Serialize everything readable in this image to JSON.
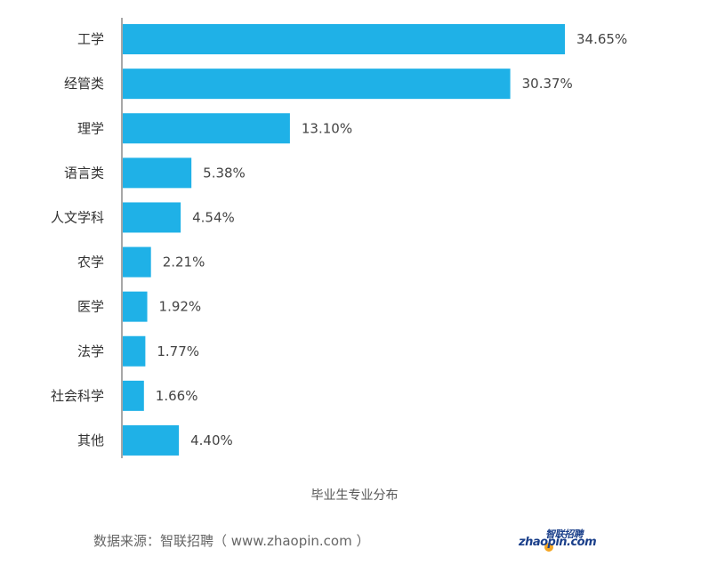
{
  "chart_data": {
    "type": "bar",
    "orientation": "horizontal",
    "categories": [
      "工学",
      "经管类",
      "理学",
      "语言类",
      "人文学科",
      "农学",
      "医学",
      "法学",
      "社会科学",
      "其他"
    ],
    "values": [
      34.65,
      30.37,
      13.1,
      5.38,
      4.54,
      2.21,
      1.92,
      1.77,
      1.66,
      4.4
    ],
    "value_labels": [
      "34.65%",
      "30.37%",
      "13.10%",
      "5.38%",
      "4.54%",
      "2.21%",
      "1.92%",
      "1.77%",
      "1.66%",
      "4.40%"
    ],
    "title": "毕业生专业分布",
    "xlabel": "",
    "ylabel": "",
    "xlim": [
      0,
      35
    ],
    "grid": false,
    "bar_color": "#1fb1e7"
  },
  "source_text": "数据来源：智联招聘（ www.zhaopin.com ）",
  "logo": {
    "text_cn": "智联招聘",
    "text_en": "zhaopin.com"
  }
}
